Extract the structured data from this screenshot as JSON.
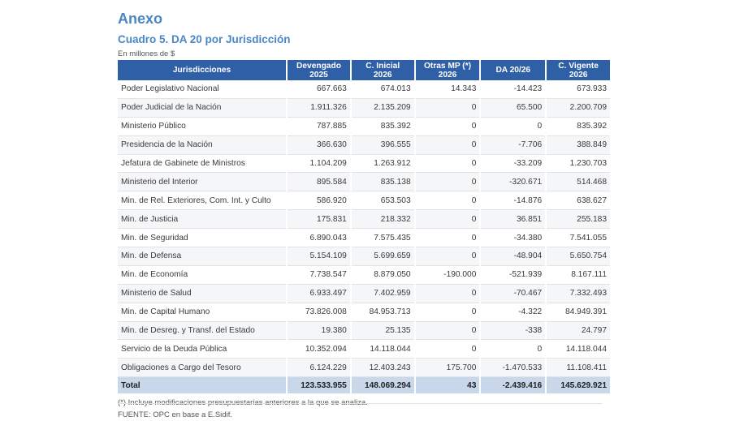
{
  "section_title": "Anexo",
  "table_title": "Cuadro 5. DA 20 por Jurisdicción",
  "units": "En millones de $",
  "columns": [
    {
      "line1": "Jurisdicciones",
      "line2": ""
    },
    {
      "line1": "Devengado",
      "line2": "2025"
    },
    {
      "line1": "C. Inicial",
      "line2": "2026"
    },
    {
      "line1": "Otras MP (*)",
      "line2": "2026"
    },
    {
      "line1": "DA 20/26",
      "line2": ""
    },
    {
      "line1": "C. Vigente",
      "line2": "2026"
    }
  ],
  "rows": [
    {
      "name": "Poder Legislativo Nacional",
      "devengado_2025": "667.663",
      "c_inicial_2026": "674.013",
      "otras_mp_2026": "14.343",
      "da_20_26": "-14.423",
      "c_vigente_2026": "673.933"
    },
    {
      "name": "Poder Judicial de la Nación",
      "devengado_2025": "1.911.326",
      "c_inicial_2026": "2.135.209",
      "otras_mp_2026": "0",
      "da_20_26": "65.500",
      "c_vigente_2026": "2.200.709"
    },
    {
      "name": "Ministerio Público",
      "devengado_2025": "787.885",
      "c_inicial_2026": "835.392",
      "otras_mp_2026": "0",
      "da_20_26": "0",
      "c_vigente_2026": "835.392"
    },
    {
      "name": "Presidencia de la Nación",
      "devengado_2025": "366.630",
      "c_inicial_2026": "396.555",
      "otras_mp_2026": "0",
      "da_20_26": "-7.706",
      "c_vigente_2026": "388.849"
    },
    {
      "name": "Jefatura de Gabinete de Ministros",
      "devengado_2025": "1.104.209",
      "c_inicial_2026": "1.263.912",
      "otras_mp_2026": "0",
      "da_20_26": "-33.209",
      "c_vigente_2026": "1.230.703"
    },
    {
      "name": "Ministerio del Interior",
      "devengado_2025": "895.584",
      "c_inicial_2026": "835.138",
      "otras_mp_2026": "0",
      "da_20_26": "-320.671",
      "c_vigente_2026": "514.468"
    },
    {
      "name": "Min. de Rel. Exteriores, Com. Int. y Culto",
      "devengado_2025": "586.920",
      "c_inicial_2026": "653.503",
      "otras_mp_2026": "0",
      "da_20_26": "-14.876",
      "c_vigente_2026": "638.627"
    },
    {
      "name": "Min. de Justicia",
      "devengado_2025": "175.831",
      "c_inicial_2026": "218.332",
      "otras_mp_2026": "0",
      "da_20_26": "36.851",
      "c_vigente_2026": "255.183"
    },
    {
      "name": "Min. de Seguridad",
      "devengado_2025": "6.890.043",
      "c_inicial_2026": "7.575.435",
      "otras_mp_2026": "0",
      "da_20_26": "-34.380",
      "c_vigente_2026": "7.541.055"
    },
    {
      "name": "Min.  de Defensa",
      "devengado_2025": "5.154.109",
      "c_inicial_2026": "5.699.659",
      "otras_mp_2026": "0",
      "da_20_26": "-48.904",
      "c_vigente_2026": "5.650.754"
    },
    {
      "name": "Min. de Economía",
      "devengado_2025": "7.738.547",
      "c_inicial_2026": "8.879.050",
      "otras_mp_2026": "-190.000",
      "da_20_26": "-521.939",
      "c_vigente_2026": "8.167.111"
    },
    {
      "name": "Ministerio de Salud",
      "devengado_2025": "6.933.497",
      "c_inicial_2026": "7.402.959",
      "otras_mp_2026": "0",
      "da_20_26": "-70.467",
      "c_vigente_2026": "7.332.493"
    },
    {
      "name": "Min. de Capital Humano",
      "devengado_2025": "73.826.008",
      "c_inicial_2026": "84.953.713",
      "otras_mp_2026": "0",
      "da_20_26": "-4.322",
      "c_vigente_2026": "84.949.391"
    },
    {
      "name": "Min. de Desreg. y Transf. del Estado",
      "devengado_2025": "19.380",
      "c_inicial_2026": "25.135",
      "otras_mp_2026": "0",
      "da_20_26": "-338",
      "c_vigente_2026": "24.797"
    },
    {
      "name": "Servicio de la Deuda Pública",
      "devengado_2025": "10.352.094",
      "c_inicial_2026": "14.118.044",
      "otras_mp_2026": "0",
      "da_20_26": "0",
      "c_vigente_2026": "14.118.044"
    },
    {
      "name": "Obligaciones a Cargo del Tesoro",
      "devengado_2025": "6.124.229",
      "c_inicial_2026": "12.403.243",
      "otras_mp_2026": "175.700",
      "da_20_26": "-1.470.533",
      "c_vigente_2026": "11.108.411"
    }
  ],
  "total": {
    "name": "Total",
    "devengado_2025": "123.533.955",
    "c_inicial_2026": "148.069.294",
    "otras_mp_2026": "43",
    "da_20_26": "-2.439.416",
    "c_vigente_2026": "145.629.921"
  },
  "footnote": "(*) Incluye modificaciones presupuestarias anteriores a la que se analiza.",
  "source": "FUENTE: OPC en base a E.Sidif."
}
